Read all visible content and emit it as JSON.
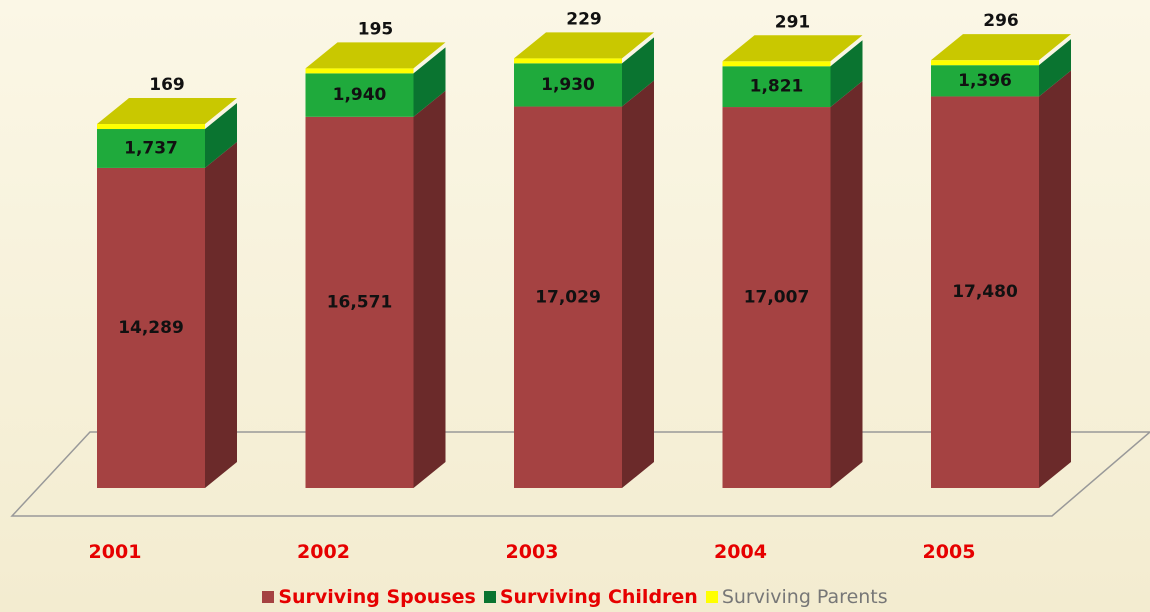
{
  "chart_data": {
    "type": "bar",
    "stacked": true,
    "categories": [
      "2001",
      "2002",
      "2003",
      "2004",
      "2005"
    ],
    "series": [
      {
        "name": "Surviving Spouses",
        "values": [
          14289,
          16571,
          17029,
          17007,
          17480
        ],
        "labels": [
          "14,289",
          "16,571",
          "17,029",
          "17,007",
          "17,480"
        ]
      },
      {
        "name": "Surviving Children",
        "values": [
          1737,
          1940,
          1930,
          1821,
          1396
        ],
        "labels": [
          "1,737",
          "1,940",
          "1,930",
          "1,821",
          "1,396"
        ]
      },
      {
        "name": "Surviving Parents",
        "values": [
          169,
          195,
          229,
          291,
          296
        ],
        "labels": [
          "169",
          "195",
          "229",
          "291",
          "296"
        ]
      }
    ],
    "legend_position": "bottom",
    "colors": {
      "spouses_front": "#a54242",
      "spouses_side": "#6b2a2a",
      "children_front": "#1faa3c",
      "children_side": "#0a7430",
      "parents_top": "#c9c800",
      "parents_band": "#ffff00",
      "category_label": "#e60000",
      "floor_line": "#999999"
    }
  },
  "legend": {
    "items": [
      {
        "label": "Surviving Spouses",
        "color": "#a54242"
      },
      {
        "label": "Surviving Children",
        "color": "#0a7430"
      },
      {
        "label": "Surviving Parents",
        "color": "#ffff00"
      }
    ]
  }
}
